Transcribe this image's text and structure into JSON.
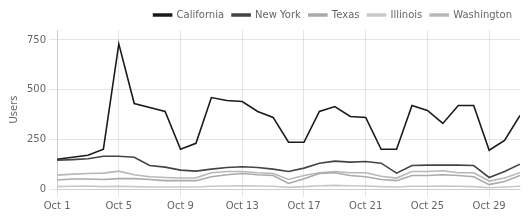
{
  "chart_data": {
    "type": "line",
    "ylabel": "Users",
    "x": [
      0,
      1,
      2,
      3,
      4,
      5,
      6,
      7,
      8,
      9,
      10,
      11,
      12,
      13,
      14,
      15,
      16,
      17,
      18,
      19,
      20,
      21,
      22,
      23,
      24,
      25,
      26,
      27,
      28,
      29,
      30
    ],
    "series": [
      {
        "name": "California",
        "color": "#1a1a1a",
        "values": [
          150,
          160,
          170,
          200,
          730,
          430,
          410,
          390,
          200,
          230,
          460,
          445,
          440,
          390,
          360,
          235,
          235,
          390,
          415,
          365,
          360,
          200,
          200,
          420,
          395,
          330,
          420,
          420,
          195,
          245,
          370
        ]
      },
      {
        "name": "New York",
        "color": "#444444",
        "values": [
          145,
          148,
          152,
          165,
          165,
          160,
          118,
          110,
          95,
          90,
          100,
          108,
          112,
          108,
          100,
          88,
          105,
          130,
          140,
          135,
          138,
          130,
          80,
          118,
          120,
          120,
          120,
          118,
          58,
          88,
          125
        ]
      },
      {
        "name": "Texas",
        "color": "#aaaaaa",
        "values": [
          45,
          50,
          50,
          48,
          52,
          52,
          48,
          42,
          42,
          42,
          62,
          72,
          78,
          72,
          68,
          28,
          52,
          78,
          82,
          68,
          62,
          48,
          42,
          68,
          68,
          72,
          68,
          62,
          22,
          38,
          68
        ]
      },
      {
        "name": "Illinois",
        "color": "#c8c8c8",
        "values": [
          12,
          14,
          15,
          12,
          14,
          12,
          10,
          10,
          10,
          10,
          14,
          15,
          16,
          15,
          14,
          8,
          12,
          16,
          18,
          16,
          15,
          12,
          10,
          14,
          14,
          15,
          14,
          12,
          6,
          10,
          14
        ]
      },
      {
        "name": "Washington",
        "color": "#b8b8b8",
        "values": [
          70,
          75,
          78,
          80,
          90,
          72,
          62,
          58,
          55,
          56,
          82,
          88,
          88,
          82,
          78,
          48,
          68,
          82,
          88,
          82,
          82,
          64,
          55,
          88,
          88,
          92,
          82,
          82,
          40,
          55,
          82
        ]
      }
    ],
    "xlim": [
      0,
      30
    ],
    "xticks": [
      {
        "value": 0,
        "label": "Oct 1"
      },
      {
        "value": 4,
        "label": "Oct 5"
      },
      {
        "value": 8,
        "label": "Oct 9"
      },
      {
        "value": 12,
        "label": "Oct 13"
      },
      {
        "value": 16,
        "label": "Oct 17"
      },
      {
        "value": 20,
        "label": "Oct 21"
      },
      {
        "value": 24,
        "label": "Oct 25"
      },
      {
        "value": 28,
        "label": "Oct 29"
      }
    ],
    "ylim": [
      0,
      800
    ],
    "yticks": [
      0,
      250,
      500,
      750
    ],
    "grid": true,
    "legend": "upper right"
  }
}
